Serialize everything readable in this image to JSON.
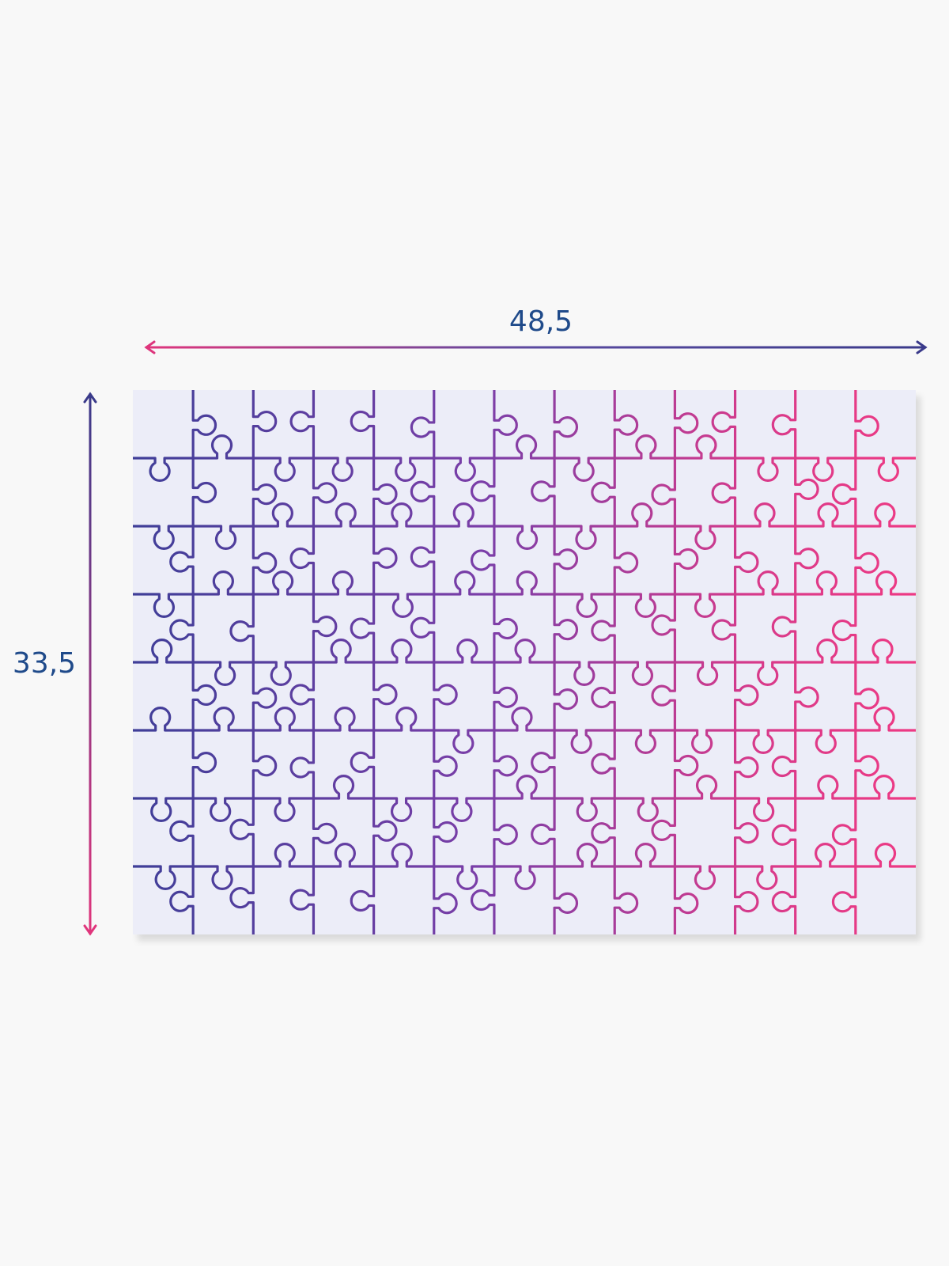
{
  "dimensions": {
    "width_label": "48,5",
    "height_label": "33,5"
  }
}
